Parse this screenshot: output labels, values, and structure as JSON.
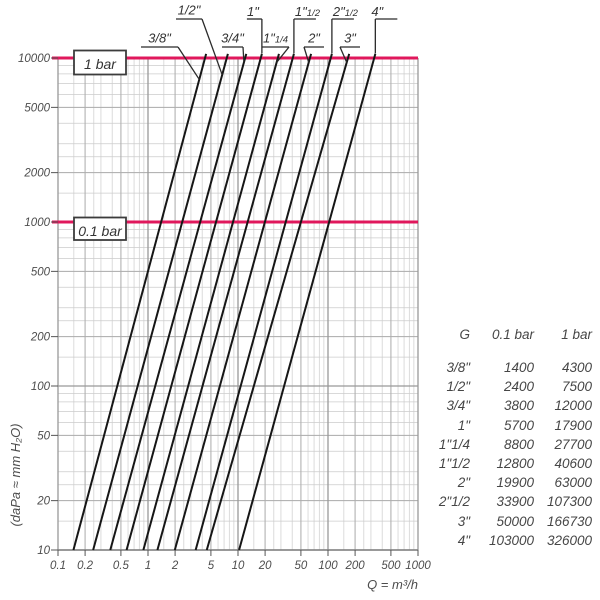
{
  "chart_data": {
    "type": "line",
    "title": "",
    "xlabel": "Q = m³/h",
    "ylabel": "(daPa ≈ mm H₂O)",
    "x_scale": "log",
    "y_scale": "log",
    "xlim": [
      0.1,
      1000
    ],
    "ylim": [
      10,
      10000
    ],
    "grid": true,
    "x_ticks": [
      0.1,
      0.2,
      0.5,
      1,
      2,
      5,
      10,
      20,
      50,
      100,
      200,
      500,
      1000
    ],
    "y_ticks": [
      10000,
      5000,
      2000,
      1000,
      500,
      200,
      100,
      50,
      20,
      10
    ],
    "reference_lines": [
      {
        "label": "1 bar",
        "value_daPa": 10000
      },
      {
        "label": "0.1 bar",
        "value_daPa": 1000
      }
    ],
    "series": [
      {
        "name": "3/8\"",
        "flow_lh_at_0_1_bar": 1400,
        "flow_lh_at_1_bar": 4300
      },
      {
        "name": "1/2\"",
        "flow_lh_at_0_1_bar": 2400,
        "flow_lh_at_1_bar": 7500
      },
      {
        "name": "3/4\"",
        "flow_lh_at_0_1_bar": 3800,
        "flow_lh_at_1_bar": 12000
      },
      {
        "name": "1\"",
        "flow_lh_at_0_1_bar": 5700,
        "flow_lh_at_1_bar": 17900
      },
      {
        "name": "1\"1/4",
        "flow_lh_at_0_1_bar": 8800,
        "flow_lh_at_1_bar": 27700
      },
      {
        "name": "1\"1/2",
        "flow_lh_at_0_1_bar": 12800,
        "flow_lh_at_1_bar": 40600
      },
      {
        "name": "2\"",
        "flow_lh_at_0_1_bar": 19900,
        "flow_lh_at_1_bar": 63000
      },
      {
        "name": "2\"1/2",
        "flow_lh_at_0_1_bar": 33900,
        "flow_lh_at_1_bar": 107300
      },
      {
        "name": "3\"",
        "flow_lh_at_0_1_bar": 50000,
        "flow_lh_at_1_bar": 166730
      },
      {
        "name": "4\"",
        "flow_lh_at_0_1_bar": 103000,
        "flow_lh_at_1_bar": 326000
      }
    ]
  },
  "table": {
    "headers": [
      "G",
      "0.1 bar",
      "1 bar"
    ],
    "rows": [
      [
        "3/8\"",
        "1400",
        "4300"
      ],
      [
        "1/2\"",
        "2400",
        "7500"
      ],
      [
        "3/4\"",
        "3800",
        "12000"
      ],
      [
        "1\"",
        "5700",
        "17900"
      ],
      [
        "1\"1/4",
        "8800",
        "27700"
      ],
      [
        "1\"1/2",
        "12800",
        "40600"
      ],
      [
        "2\"",
        "19900",
        "63000"
      ],
      [
        "2\"1/2",
        "33900",
        "107300"
      ],
      [
        "3\"",
        "50000",
        "166730"
      ],
      [
        "4\"",
        "103000",
        "326000"
      ]
    ]
  },
  "colors": {
    "accent_pink": "#e0185c",
    "curve": "#161616",
    "grid_minor": "#cccccc",
    "grid_mid": "#adadad",
    "grid_major": "#999999",
    "axis": "#808080",
    "text": "#4d4d4d"
  }
}
